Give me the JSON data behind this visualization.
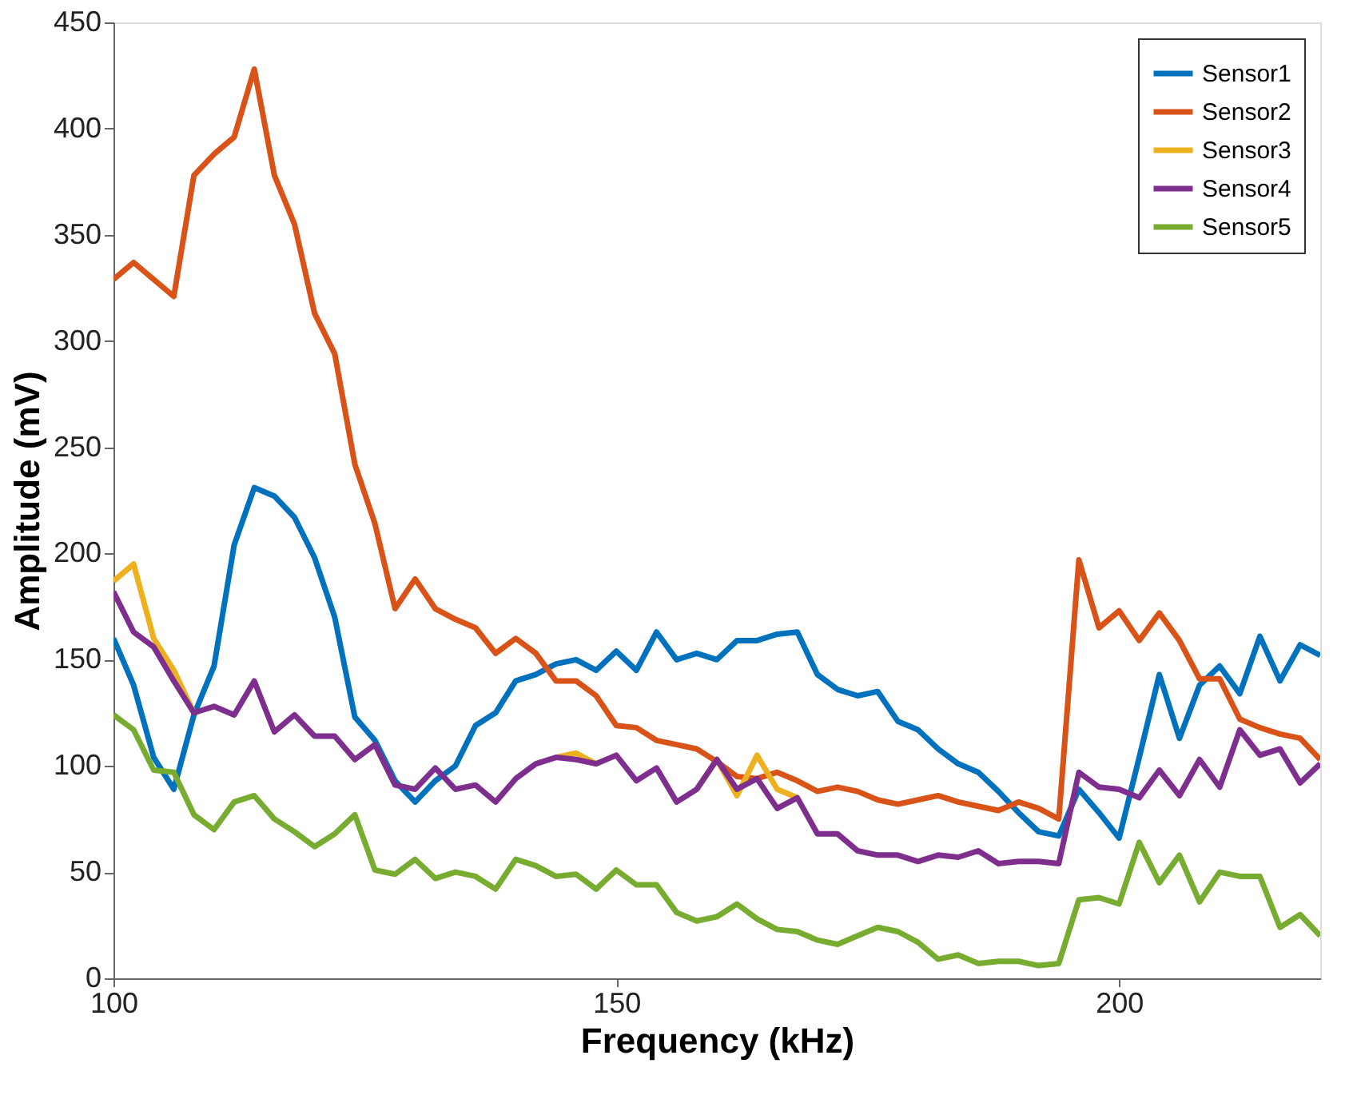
{
  "chart_data": {
    "type": "line",
    "xlabel": "Frequency (kHz)",
    "ylabel": "Amplitude (mV)",
    "x": [
      100,
      102,
      104,
      106,
      108,
      110,
      112,
      114,
      116,
      118,
      120,
      122,
      124,
      126,
      128,
      130,
      132,
      134,
      136,
      138,
      140,
      142,
      144,
      146,
      148,
      150,
      152,
      154,
      156,
      158,
      160,
      162,
      164,
      166,
      168,
      170,
      172,
      174,
      176,
      178,
      180,
      182,
      184,
      186,
      188,
      190,
      192,
      194,
      196,
      198,
      200,
      202,
      204,
      206,
      208,
      210,
      212,
      214,
      216,
      218,
      220
    ],
    "xlim": [
      100,
      220
    ],
    "xticks": [
      100,
      150,
      200
    ],
    "ylim": [
      0,
      450
    ],
    "yticks": [
      0,
      50,
      100,
      150,
      200,
      250,
      300,
      350,
      400,
      450
    ],
    "grid": false,
    "legend": "top right",
    "line_style": "solid",
    "marker": "none",
    "series": [
      {
        "name": "Sensor1",
        "color": "#0072bd",
        "values": [
          160,
          138,
          104,
          89,
          124,
          147,
          204,
          231,
          227,
          217,
          198,
          170,
          123,
          112,
          93,
          83,
          93,
          100,
          119,
          125,
          140,
          143,
          148,
          150,
          145,
          154,
          145,
          163,
          150,
          153,
          150,
          159,
          159,
          162,
          163,
          143,
          136,
          133,
          135,
          121,
          117,
          108,
          101,
          97,
          88,
          78,
          69,
          67,
          89,
          78,
          66,
          104,
          143,
          113,
          138,
          147,
          134,
          161,
          140,
          157,
          152
        ]
      },
      {
        "name": "Sensor2",
        "color": "#d95319",
        "values": [
          329,
          337,
          329,
          321,
          378,
          388,
          396,
          428,
          378,
          355,
          313,
          294,
          242,
          214,
          174,
          188,
          174,
          169,
          165,
          153,
          160,
          153,
          140,
          140,
          133,
          119,
          118,
          112,
          110,
          108,
          102,
          95,
          94,
          97,
          93,
          88,
          90,
          88,
          84,
          82,
          84,
          86,
          83,
          81,
          79,
          83,
          80,
          75,
          197,
          165,
          173,
          159,
          172,
          159,
          141,
          141,
          122,
          118,
          115,
          113,
          103
        ]
      },
      {
        "name": "Sensor3",
        "color": "#edb120",
        "values": [
          187,
          195,
          160,
          145,
          125,
          null,
          null,
          null,
          null,
          null,
          null,
          null,
          null,
          null,
          null,
          null,
          null,
          null,
          null,
          null,
          null,
          null,
          104,
          106,
          101,
          null,
          null,
          null,
          null,
          89,
          103,
          86,
          105,
          89,
          85,
          null,
          null,
          null,
          null,
          null,
          null,
          null,
          null,
          null,
          null,
          null,
          null,
          null,
          null,
          null,
          null,
          null,
          null,
          null,
          null,
          null,
          null,
          null,
          null,
          null,
          null
        ]
      },
      {
        "name": "Sensor4",
        "color": "#7e2f8e",
        "values": [
          182,
          163,
          156,
          140,
          125,
          128,
          124,
          140,
          116,
          124,
          114,
          114,
          103,
          110,
          91,
          89,
          99,
          89,
          91,
          83,
          94,
          101,
          104,
          103,
          101,
          105,
          93,
          99,
          83,
          89,
          103,
          89,
          94,
          80,
          85,
          68,
          68,
          60,
          58,
          58,
          55,
          58,
          57,
          60,
          54,
          55,
          55,
          54,
          97,
          90,
          89,
          85,
          98,
          86,
          103,
          90,
          117,
          105,
          108,
          92,
          101
        ]
      },
      {
        "name": "Sensor5",
        "color": "#77ac30",
        "values": [
          124,
          117,
          98,
          97,
          77,
          70,
          83,
          86,
          75,
          69,
          62,
          68,
          77,
          51,
          49,
          56,
          47,
          50,
          48,
          42,
          56,
          53,
          48,
          49,
          42,
          51,
          44,
          44,
          31,
          27,
          29,
          35,
          28,
          23,
          22,
          18,
          16,
          20,
          24,
          22,
          17,
          9,
          11,
          7,
          8,
          8,
          6,
          7,
          37,
          38,
          35,
          64,
          45,
          58,
          36,
          50,
          48,
          48,
          24,
          30,
          20
        ]
      }
    ]
  }
}
